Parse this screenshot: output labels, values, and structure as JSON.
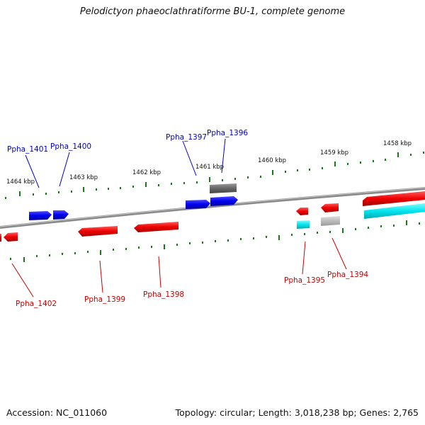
{
  "title": "Pelodictyon phaeoclathratiforme BU-1, complete genome",
  "footer": {
    "accession": "Accession: NC_011060",
    "topology": "Topology: circular; Length: 3,018,238 bp; Genes: 2,765"
  },
  "colors": {
    "backbone": "#888888",
    "tick": "#1a7a1a",
    "plus_strand_cds": "#0000ee",
    "minus_strand_cds": "#ee0000",
    "rna_feature": "#00e5ee",
    "other_feature": "#777777",
    "label_plus": "#0000cc",
    "label_minus": "#cc0000"
  },
  "scale": {
    "unit": "kbp",
    "labels": [
      "1464 kbp",
      "1463 kbp",
      "1462 kbp",
      "1461 kbp",
      "1460 kbp",
      "1459 kbp",
      "1458 kbp"
    ]
  },
  "genes": {
    "plus_strand": [
      "Ppha_1401",
      "Ppha_1400",
      "Ppha_1397",
      "Ppha_1396"
    ],
    "minus_strand": [
      "Ppha_1402",
      "Ppha_1399",
      "Ppha_1398",
      "Ppha_1395",
      "Ppha_1394"
    ]
  }
}
